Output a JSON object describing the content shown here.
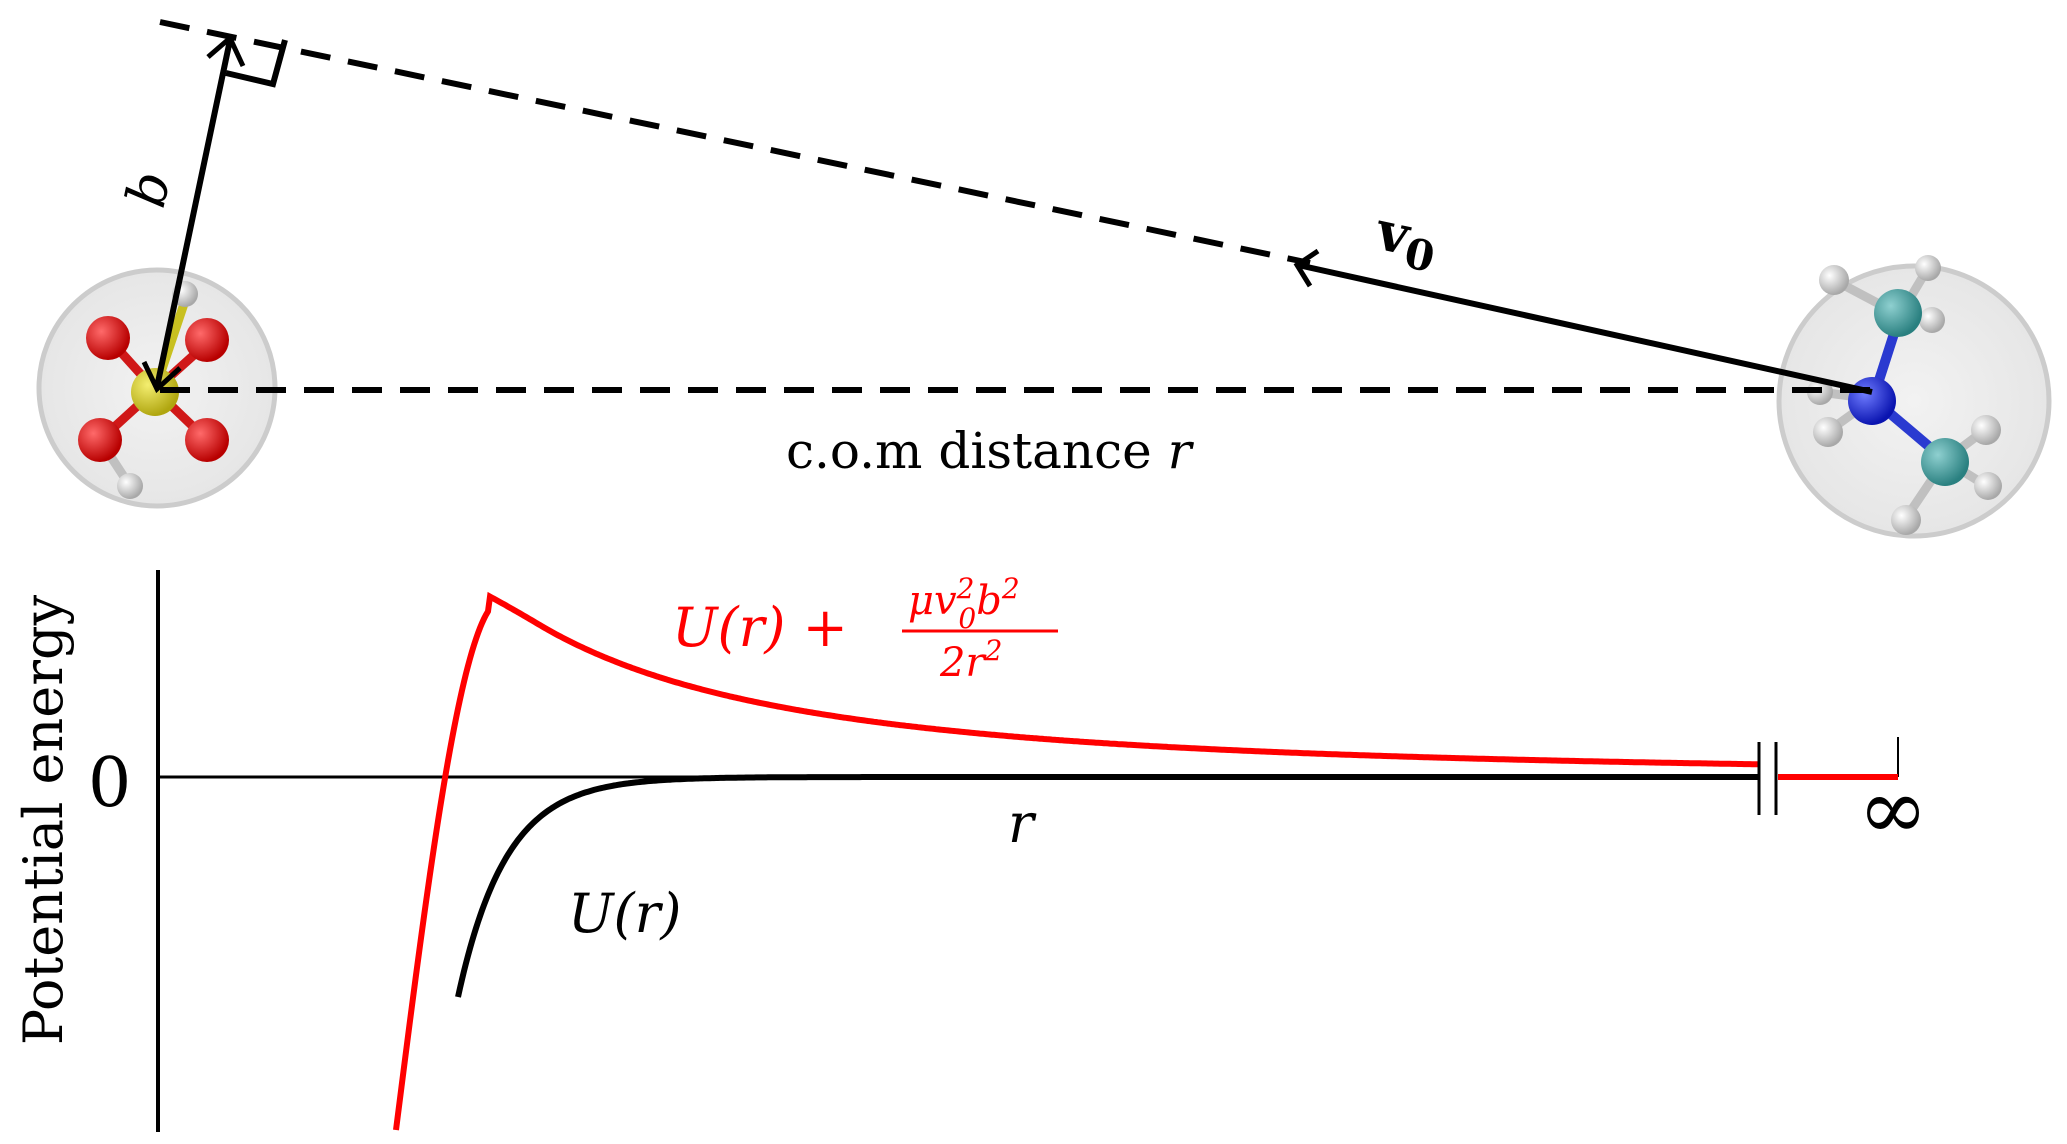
{
  "top_diagram": {
    "impact_parameter_label": "b",
    "velocity_label": "v",
    "velocity_subscript": "0",
    "distance_label_text": "c.o.m distance ",
    "distance_label_var": "r",
    "molecule_left": {
      "atoms": [
        "S",
        "O",
        "O",
        "O",
        "O",
        "H",
        "H"
      ],
      "colors": {
        "S": "#c8c020",
        "O": "#d01818",
        "H": "#bdbdbd"
      }
    },
    "molecule_right": {
      "atoms": [
        "N",
        "C",
        "C",
        "H",
        "H",
        "H",
        "H",
        "H",
        "H",
        "H",
        "H"
      ],
      "colors": {
        "N": "#1a2ad0",
        "C": "#3a9a9a",
        "H": "#bdbdbd"
      }
    },
    "sphere_color": "#ececec"
  },
  "chart_data": {
    "type": "line",
    "ylabel": "Potential energy",
    "xlabel": "r",
    "y_tick_labels": [
      "0"
    ],
    "x_end_label": "∞",
    "axis_break": true,
    "series": [
      {
        "name": "U(r)",
        "color": "#000000"
      },
      {
        "name": "U(r) + μv0²b²/(2r²)",
        "color": "#ff0000"
      }
    ],
    "annotations": {
      "black_curve": {
        "text": "U(r)"
      },
      "red_curve": {
        "prefix": "U(r) + ",
        "numerator": "μv",
        "numerator_sup": "2",
        "numerator_sub": "0",
        "numerator_tail": "b",
        "numerator_tail_sup": "2",
        "denominator": "2r",
        "denominator_sup": "2"
      }
    }
  }
}
